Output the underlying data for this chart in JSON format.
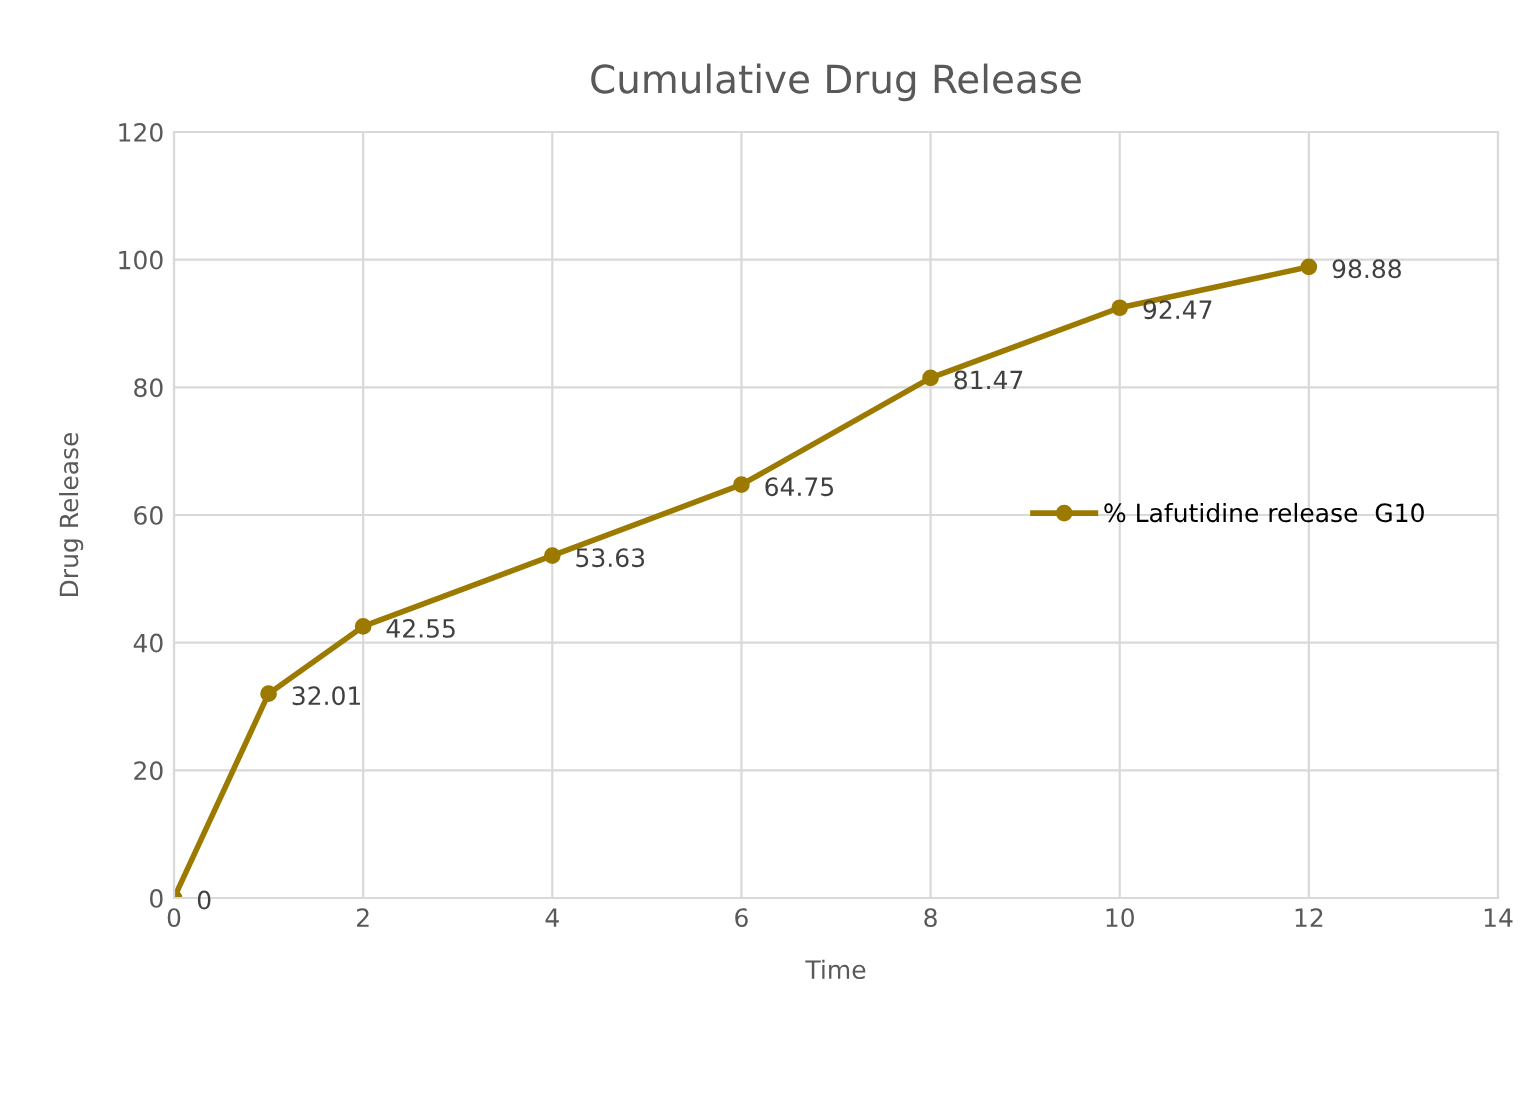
{
  "chart_data": {
    "type": "line",
    "title": "Cumulative Drug Release",
    "xlabel": "Time",
    "ylabel": "Drug Release",
    "x": [
      0,
      1,
      2,
      4,
      6,
      8,
      10,
      12
    ],
    "series": [
      {
        "name": "% Lafutidine release  G10",
        "color": "#9c7a00",
        "values": [
          0,
          32.01,
          42.55,
          53.63,
          64.75,
          81.47,
          92.47,
          98.88
        ]
      }
    ],
    "xlim": [
      0,
      14
    ],
    "xticks": [
      0,
      2,
      4,
      6,
      8,
      10,
      12,
      14
    ],
    "ylim": [
      0,
      120
    ],
    "yticks": [
      0,
      20,
      40,
      60,
      80,
      100,
      120
    ],
    "grid": true,
    "legend": "right",
    "marker": "circle",
    "line_style": "solid",
    "data_labels": true
  }
}
